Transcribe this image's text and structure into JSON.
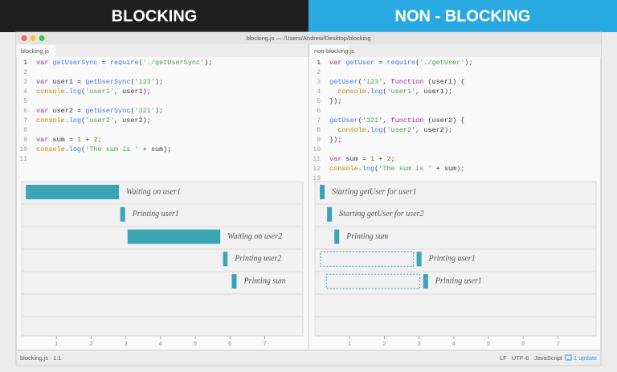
{
  "banner": {
    "left": "BLOCKING",
    "right": "NON - BLOCKING"
  },
  "window": {
    "title": "blocking.js — /Users/Andrew/Desktop/blocking"
  },
  "panes": [
    {
      "tab": "blocking.js",
      "lines": [
        {
          "n": 1,
          "code": "var getUserSync = require('./getUserSync');"
        },
        {
          "n": 2
        },
        {
          "n": 3,
          "code": "var user1 = getUserSync('123');"
        },
        {
          "n": 4,
          "code": "console.log('user1', user1);"
        },
        {
          "n": 5
        },
        {
          "n": 6,
          "code": "var user2 = getUserSync('321');"
        },
        {
          "n": 7,
          "code": "console.log('user2', user2);"
        },
        {
          "n": 8
        },
        {
          "n": 9,
          "code": "var sum = 1 + 2;"
        },
        {
          "n": 10,
          "code": "console.log('The sum is ' + sum);"
        },
        {
          "n": 11
        }
      ],
      "timeline": {
        "xlim": [
          0,
          8.1
        ],
        "ticks": [
          1,
          2,
          3,
          4,
          5,
          6,
          7
        ],
        "rows": [
          {
            "label": "Waiting on user1",
            "start": 0.12,
            "end": 2.8
          },
          {
            "label": "Printing user1",
            "start": 2.84,
            "end": 2.98
          },
          {
            "label": "Waiting on user2",
            "start": 3.05,
            "end": 5.72
          },
          {
            "label": "Printing user2",
            "start": 5.8,
            "end": 5.93
          },
          {
            "label": "Printing sum",
            "start": 6.05,
            "end": 6.19
          }
        ]
      }
    },
    {
      "tab": "non-blocking.js",
      "lines": [
        {
          "n": 1,
          "code": "var getUser = require('./getUser');"
        },
        {
          "n": 2
        },
        {
          "n": 3,
          "code": "getUser('123', function (user1) {"
        },
        {
          "n": 4,
          "code": "  console.log('user1', user1);"
        },
        {
          "n": 5,
          "code": "});"
        },
        {
          "n": 6
        },
        {
          "n": 7,
          "code": "getUser('321', function (user2) {"
        },
        {
          "n": 8,
          "code": "  console.log('user2', user2);"
        },
        {
          "n": 9,
          "code": "});"
        },
        {
          "n": 10
        },
        {
          "n": 11,
          "code": "var sum = 1 + 2;"
        },
        {
          "n": 12,
          "code": "console.log('The sum is ' + sum);"
        },
        {
          "n": 13
        }
      ],
      "timeline": {
        "xlim": [
          0,
          8.1
        ],
        "ticks": [
          1,
          2,
          3,
          4,
          5,
          6,
          7
        ],
        "rows": [
          {
            "label": "Starting getUser for user1",
            "start": 0.14,
            "end": 0.28
          },
          {
            "label": "Starting getUser for user2",
            "start": 0.35,
            "end": 0.49
          },
          {
            "label": "Printing sum",
            "start": 0.56,
            "end": 0.7
          },
          {
            "label": "Printing user1",
            "wait": [
              0.16,
              2.84
            ],
            "start": 2.93,
            "end": 3.07
          },
          {
            "label": "Printing user1",
            "wait": [
              0.33,
              3.02
            ],
            "start": 3.12,
            "end": 3.26
          }
        ]
      }
    }
  ],
  "status": {
    "file": "blocking.js",
    "position": "1:1",
    "eol": "LF",
    "encoding": "UTF-8",
    "grammar": "JavaScript",
    "update": "1 update"
  }
}
